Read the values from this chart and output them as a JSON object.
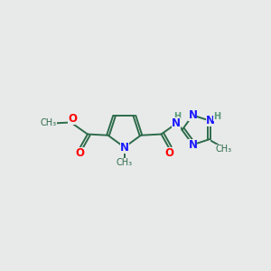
{
  "bg_color": "#e8eaea",
  "bond_color": "#2d6b4a",
  "bond_width": 1.4,
  "doff": 0.055,
  "atom_colors": {
    "N": "#1a1aff",
    "O": "#ff0000",
    "C": "#2d6b4a",
    "H": "#5a9a7a"
  },
  "fs_large": 8.5,
  "fs_small": 7.0,
  "xlim": [
    0,
    12
  ],
  "ylim": [
    0,
    10
  ]
}
